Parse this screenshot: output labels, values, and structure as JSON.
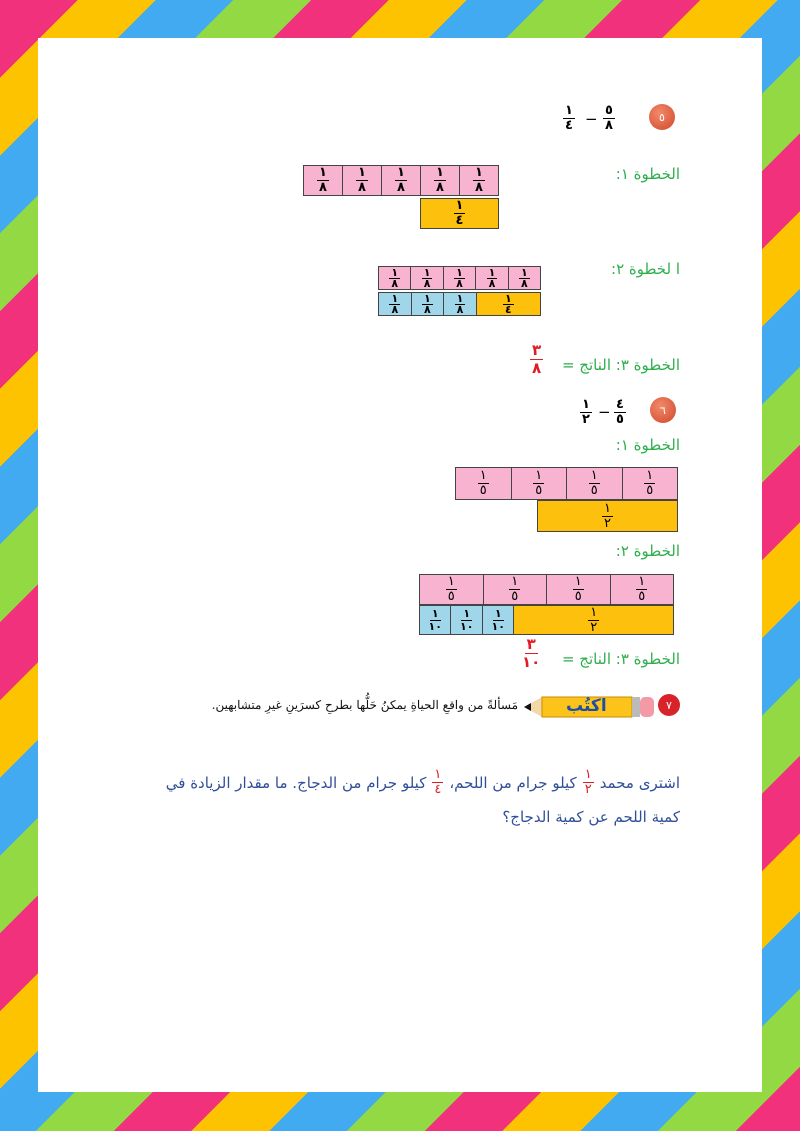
{
  "problem5": {
    "number": "٥",
    "expr": {
      "left": {
        "n": "٥",
        "d": "٨"
      },
      "op": "−",
      "right": {
        "n": "١",
        "d": "٤"
      }
    },
    "step1_label": "الخطوة ١:",
    "step2_label": "ا لخطوة ٢:",
    "step3_label": "الخطوة ٣: الناتج =",
    "result": {
      "n": "٣",
      "d": "٨"
    },
    "eighth": {
      "n": "١",
      "d": "٨"
    },
    "quarter": {
      "n": "١",
      "d": "٤"
    }
  },
  "problem6": {
    "number": "٦",
    "expr": {
      "left": {
        "n": "٤",
        "d": "٥"
      },
      "op": "−",
      "right": {
        "n": "١",
        "d": "٢"
      }
    },
    "step1_label": "الخطوة ١:",
    "step2_label": "الخطوة ٢:",
    "step3_label": "الخطوة ٣: الناتج =",
    "result": {
      "n": "٣",
      "d": "١٠"
    },
    "fifth": {
      "n": "١",
      "d": "٥"
    },
    "half": {
      "n": "١",
      "d": "٢"
    },
    "tenth": {
      "n": "١",
      "d": "١٠"
    }
  },
  "problem7": {
    "number": "٧",
    "pencil_label": "اكتُب",
    "prompt": "مَسألةً من واقعِ الحياةِ يمكنُ حَلُّها بطرحِ كسرَينِ غيرِ متشابهين.",
    "line1_a": "اشترى محمد",
    "frac1": {
      "n": "١",
      "d": "٢"
    },
    "line1_b": "كيلو جرام من اللحم،",
    "frac2": {
      "n": "١",
      "d": "٤"
    },
    "line1_c": "كيلو جرام من الدجاج. ما مقدار الزيادة في",
    "line2": "كمية اللحم عن كمية الدجاج؟"
  },
  "colors": {
    "pink": "#f7b3cf",
    "yellow": "#fdc10d",
    "blue": "#9fd6ea",
    "green_label": "#2fae4e",
    "answer_red": "#e21c24"
  }
}
